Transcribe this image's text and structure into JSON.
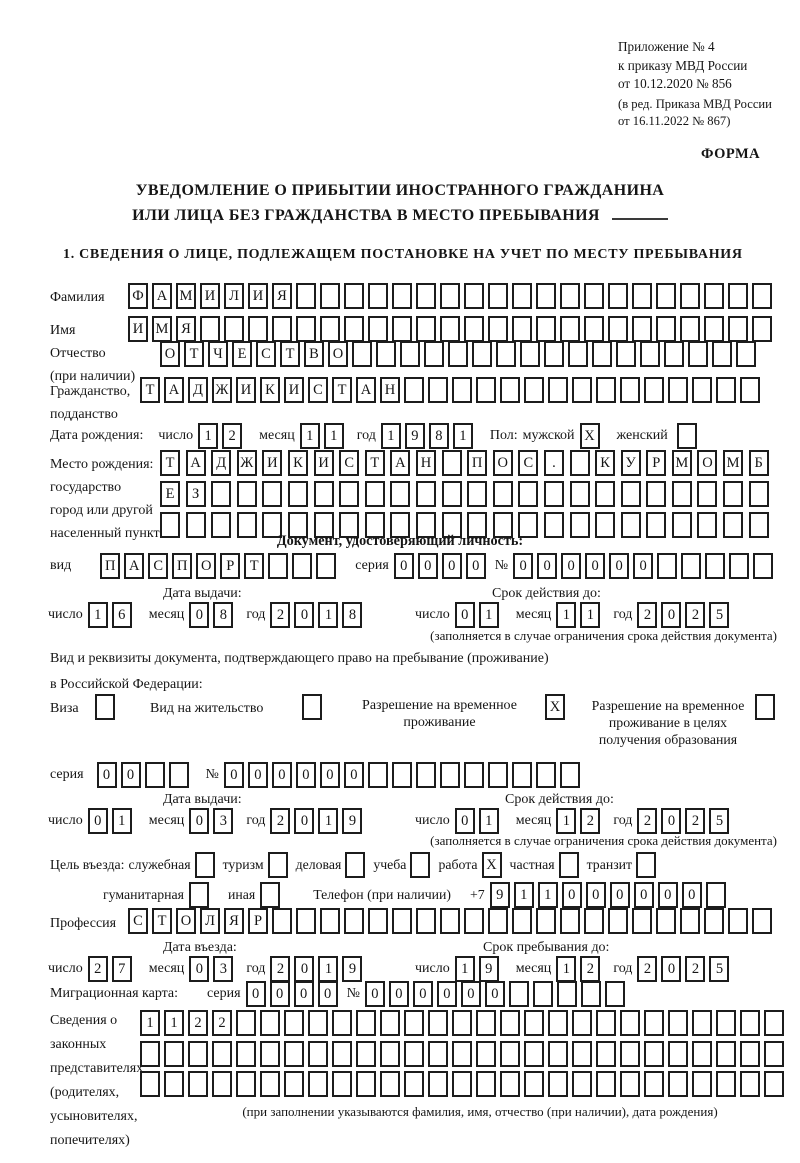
{
  "doc": {
    "annex": [
      "Приложение № 4",
      "к приказу МВД России",
      "от 10.12.2020 № 856"
    ],
    "amendment": [
      "(в ред. Приказа МВД России",
      "от 16.11.2022 № 867)"
    ],
    "form_label": "ФОРМА",
    "title1": "УВЕДОМЛЕНИЕ О ПРИБЫТИИ ИНОСТРАННОГО ГРАЖДАНИНА",
    "title2": "ИЛИ ЛИЦА БЕЗ ГРАЖДАНСТВА В МЕСТО ПРЕБЫВАНИЯ",
    "section1": "1. СВЕДЕНИЯ О ЛИЦЕ, ПОДЛЕЖАЩЕМ ПОСТАНОВКЕ НА УЧЕТ ПО МЕСТУ ПРЕБЫВАНИЯ"
  },
  "labels": {
    "surname": "Фамилия",
    "name": "Имя",
    "patronymic_1": "Отчество",
    "patronymic_2": "(при наличии)",
    "citizenship_1": "Гражданство,",
    "citizenship_2": "подданство",
    "birth_date": "Дата рождения:",
    "day": "число",
    "month": "месяц",
    "year": "год",
    "sex": "Пол:",
    "male": "мужской",
    "female": "женский",
    "birth_place_1": "Место рождения:",
    "birth_place_2": "государство",
    "birth_place_3": "город или другой",
    "birth_place_4": "населенный пункт",
    "identity_doc_heading": "Документ, удостоверяющий личность:",
    "doc_kind": "вид",
    "series": "серия",
    "number": "№",
    "issue_date": "Дата выдачи:",
    "valid_until": "Срок действия до:",
    "validity_note": "(заполняется в случае ограничения срока действия документа)",
    "residence_line1": "Вид и реквизиты документа, подтверждающего право на пребывание (проживание)",
    "residence_line2": "в Российской Федерации:",
    "visa": "Виза",
    "residence_permit": "Вид на жительство",
    "temp_res_1": "Разрешение на временное",
    "temp_res_2": "проживание",
    "edu_res_1": "Разрешение на временное",
    "edu_res_2": "проживание в целях",
    "edu_res_3": "получения образования",
    "purpose": "Цель въезда:",
    "p_official": "служебная",
    "p_tourism": "туризм",
    "p_business": "деловая",
    "p_study": "учеба",
    "p_work": "работа",
    "p_private": "частная",
    "p_transit": "транзит",
    "p_humanitarian": "гуманитарная",
    "p_other": "иная",
    "phone": "Телефон (при наличии)",
    "phone_code": "+7",
    "profession": "Профессия",
    "entry_date": "Дата въезда:",
    "stay_until": "Срок пребывания до:",
    "migration_card": "Миграционная карта:",
    "guardians_1": "Сведения о",
    "guardians_2": "законных",
    "guardians_3": "представителях",
    "guardians_4": "(родителях,",
    "guardians_5": "усыновителях,",
    "guardians_6": "попечителях)",
    "guardians_note": "(при заполнении указываются фамилия, имя, отчество (при наличии), дата рождения)"
  },
  "cells": {
    "surname": {
      "t": "ФАМИЛИЯ",
      "n": 27
    },
    "name": {
      "t": "ИМЯ",
      "n": 27
    },
    "patronymic": {
      "t": "ОТЧЕСТВО",
      "n": 25
    },
    "citizenship": {
      "t": "ТАДЖИКИСТАН",
      "n": 26
    },
    "birth_day": {
      "t": "12",
      "n": 2
    },
    "birth_month": {
      "t": "11",
      "n": 2
    },
    "birth_year": {
      "t": "1981",
      "n": 4
    },
    "male_cb": {
      "t": "Х",
      "n": 1
    },
    "female_cb": {
      "t": "",
      "n": 1
    },
    "birth_place_row1": {
      "t": "ТАДЖИКИСТАН ПОС. КУРМОМБ",
      "n": 24
    },
    "birth_place_row2": {
      "t": "ЕЗ",
      "n": 24
    },
    "birth_place_row3": {
      "t": "",
      "n": 24
    },
    "doc_kind": {
      "t": "ПАСПОРТ",
      "n": 10
    },
    "doc_series": {
      "t": "0000",
      "n": 4
    },
    "doc_number": {
      "t": "000000",
      "n": 11
    },
    "doc_issue_day": {
      "t": "16",
      "n": 2
    },
    "doc_issue_month": {
      "t": "08",
      "n": 2
    },
    "doc_issue_year": {
      "t": "2018",
      "n": 4
    },
    "doc_valid_day": {
      "t": "01",
      "n": 2
    },
    "doc_valid_month": {
      "t": "11",
      "n": 2
    },
    "doc_valid_year": {
      "t": "2025",
      "n": 4
    },
    "visa_cb": {
      "t": "",
      "n": 1
    },
    "res_permit_cb": {
      "t": "",
      "n": 1
    },
    "temp_res_cb": {
      "t": "Х",
      "n": 1
    },
    "edu_res_cb": {
      "t": "",
      "n": 1
    },
    "res_series": {
      "t": "00",
      "n": 4
    },
    "res_number": {
      "t": "000000",
      "n": 15
    },
    "res_issue_day": {
      "t": "01",
      "n": 2
    },
    "res_issue_month": {
      "t": "03",
      "n": 2
    },
    "res_issue_year": {
      "t": "2019",
      "n": 4
    },
    "res_valid_day": {
      "t": "01",
      "n": 2
    },
    "res_valid_month": {
      "t": "12",
      "n": 2
    },
    "res_valid_year": {
      "t": "2025",
      "n": 4
    },
    "p_official_cb": {
      "t": "",
      "n": 1
    },
    "p_tourism_cb": {
      "t": "",
      "n": 1
    },
    "p_business_cb": {
      "t": "",
      "n": 1
    },
    "p_study_cb": {
      "t": "",
      "n": 1
    },
    "p_work_cb": {
      "t": "Х",
      "n": 1
    },
    "p_private_cb": {
      "t": "",
      "n": 1
    },
    "p_transit_cb": {
      "t": "",
      "n": 1
    },
    "p_humanitarian_cb": {
      "t": "",
      "n": 1
    },
    "p_other_cb": {
      "t": "",
      "n": 1
    },
    "phone": {
      "t": "911000000",
      "n": 10
    },
    "profession": {
      "t": "СТОЛЯР",
      "n": 27
    },
    "entry_day": {
      "t": "27",
      "n": 2
    },
    "entry_month": {
      "t": "03",
      "n": 2
    },
    "entry_year": {
      "t": "2019",
      "n": 4
    },
    "stay_day": {
      "t": "19",
      "n": 2
    },
    "stay_month": {
      "t": "12",
      "n": 2
    },
    "stay_year": {
      "t": "2025",
      "n": 4
    },
    "mig_series": {
      "t": "0000",
      "n": 4
    },
    "mig_number": {
      "t": "000000",
      "n": 11
    },
    "guardian_row1": {
      "t": "1122",
      "n": 27
    },
    "guardian_row2": {
      "t": "",
      "n": 27
    },
    "guardian_row3": {
      "t": "",
      "n": 27
    }
  }
}
